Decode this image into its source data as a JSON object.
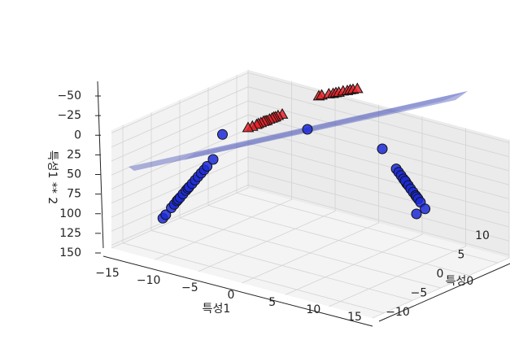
{
  "chart_data": {
    "type": "scatter",
    "projection": "3d",
    "title": "",
    "grid": true,
    "hyperplane": {
      "color": "#3a47b5",
      "opacity": 0.4
    },
    "axes": {
      "x": {
        "label": "특성0",
        "range": [
          -12,
          12
        ],
        "ticks": [
          -10,
          -5,
          0,
          5,
          10
        ],
        "tick_labels": [
          "−10",
          "−5",
          "0",
          "5",
          "10"
        ]
      },
      "y": {
        "label": "특성1",
        "range": [
          -15,
          15
        ],
        "ticks": [
          -15,
          -10,
          -5,
          0,
          5,
          10,
          15
        ],
        "tick_labels": [
          "−15",
          "−10",
          "−5",
          "0",
          "5",
          "10",
          "15"
        ]
      },
      "z": {
        "label": "특성1 ** 2",
        "range": [
          -55,
          155
        ],
        "ticks": [
          -50,
          -25,
          0,
          25,
          50,
          75,
          100,
          125,
          150
        ],
        "tick_labels": [
          "−50",
          "−25",
          "0",
          "25",
          "50",
          "75",
          "100",
          "125",
          "150"
        ],
        "inverted": true
      }
    },
    "series": [
      {
        "marker": "triangle",
        "color": "#e8232a",
        "points": [
          [
            -8,
            -9,
            81
          ],
          [
            -8.5,
            -9.4,
            88
          ],
          [
            -7.5,
            -8.6,
            74
          ],
          [
            -9,
            -9.8,
            96
          ],
          [
            -7,
            -8.2,
            67
          ],
          [
            -9.5,
            -10.2,
            104
          ],
          [
            -6.5,
            -7.8,
            61
          ],
          [
            -8.2,
            -9.1,
            83
          ],
          [
            -7.8,
            -8.9,
            79
          ],
          [
            -10,
            -10.5,
            110
          ],
          [
            -6,
            -7.5,
            56
          ],
          [
            -8.8,
            -9.6,
            92
          ],
          [
            -9.2,
            -9.9,
            98
          ],
          [
            -7.2,
            -8.4,
            71
          ],
          [
            9,
            10,
            100
          ],
          [
            9.5,
            10.4,
            108
          ],
          [
            8.5,
            9.7,
            94
          ],
          [
            10,
            10.7,
            114
          ],
          [
            8,
            9.4,
            88
          ],
          [
            9.2,
            10.1,
            102
          ],
          [
            10.5,
            11,
            121
          ],
          [
            8.8,
            9.8,
            96
          ],
          [
            9.8,
            10.5,
            110
          ],
          [
            7.8,
            9.2,
            85
          ],
          [
            10.2,
            10.8,
            117
          ]
        ]
      },
      {
        "marker": "circle",
        "color": "#1c2ad8",
        "points": [
          [
            -8,
            7,
            49
          ],
          [
            -8.5,
            8,
            64
          ],
          [
            -9,
            9,
            81
          ],
          [
            -7.5,
            6,
            36
          ],
          [
            -9.5,
            10,
            100
          ],
          [
            -8.2,
            7.5,
            56
          ],
          [
            -9.2,
            9.5,
            90
          ],
          [
            -7,
            5,
            25
          ],
          [
            -9.8,
            11,
            121
          ],
          [
            -8.8,
            8.5,
            72
          ],
          [
            -7.8,
            6.5,
            42
          ],
          [
            -9.6,
            10.5,
            110
          ],
          [
            -10,
            12,
            144
          ],
          [
            -6.5,
            4,
            16
          ],
          [
            -8.6,
            8.2,
            67
          ],
          [
            -3,
            -6,
            36
          ],
          [
            -9.4,
            9.8,
            96
          ],
          [
            -10.2,
            12.5,
            156
          ],
          [
            -7.2,
            5.5,
            30
          ],
          [
            8,
            -6,
            36
          ],
          [
            8.5,
            -7,
            49
          ],
          [
            9,
            -8,
            64
          ],
          [
            7.5,
            -5,
            25
          ],
          [
            9.5,
            -9,
            81
          ],
          [
            8.2,
            -6.5,
            42
          ],
          [
            8.8,
            -7.5,
            56
          ],
          [
            9.2,
            -8.5,
            72
          ],
          [
            7.8,
            -5.5,
            30
          ],
          [
            9.8,
            -9.5,
            90
          ],
          [
            8.4,
            -7.2,
            52
          ],
          [
            10,
            -10,
            100
          ],
          [
            8.6,
            -6.8,
            46
          ],
          [
            9.6,
            -9.2,
            85
          ],
          [
            6.5,
            -2,
            4
          ],
          [
            10.4,
            -11,
            121
          ],
          [
            7,
            1,
            1
          ],
          [
            9,
            -12,
            144
          ]
        ]
      }
    ]
  }
}
